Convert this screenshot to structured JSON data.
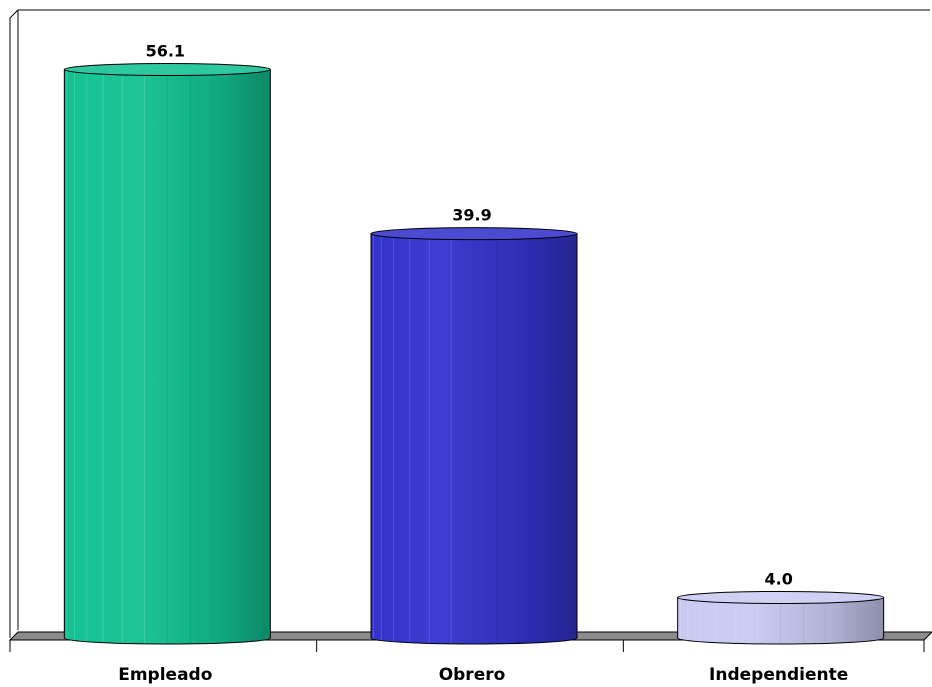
{
  "chart_data": {
    "type": "bar",
    "style": "3d-cylinder",
    "categories": [
      "Empleado",
      "Obrero",
      "Independiente"
    ],
    "values": [
      56.1,
      39.9,
      4.0
    ],
    "value_labels": [
      "56.1",
      "39.9",
      "4.0"
    ],
    "colors": [
      "#12c193",
      "#3333cc",
      "#c8caf2"
    ],
    "title": "",
    "xlabel": "",
    "ylabel": "",
    "ylim": [
      0,
      60
    ],
    "grid": false,
    "legend": "none"
  }
}
